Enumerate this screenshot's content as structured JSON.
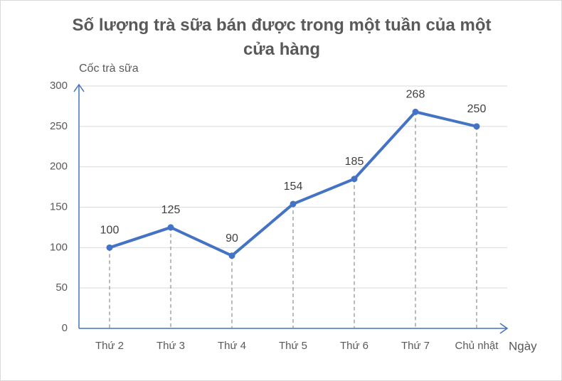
{
  "chart_data": {
    "type": "line",
    "title": "Số lượng trà sữa bán được trong một tuần của một cửa hàng",
    "y_label": "Cốc trà sữa",
    "x_label": "Ngày",
    "categories": [
      "Thứ 2",
      "Thứ 3",
      "Thứ 4",
      "Thứ 5",
      "Thứ 6",
      "Thứ 7",
      "Chủ nhật"
    ],
    "values": [
      100,
      125,
      90,
      154,
      185,
      268,
      250
    ],
    "color": "#4472c4",
    "ylim": [
      0,
      300
    ],
    "yticks": [
      0,
      50,
      100,
      150,
      200,
      250,
      300
    ],
    "grid": true,
    "drop_lines": true
  }
}
